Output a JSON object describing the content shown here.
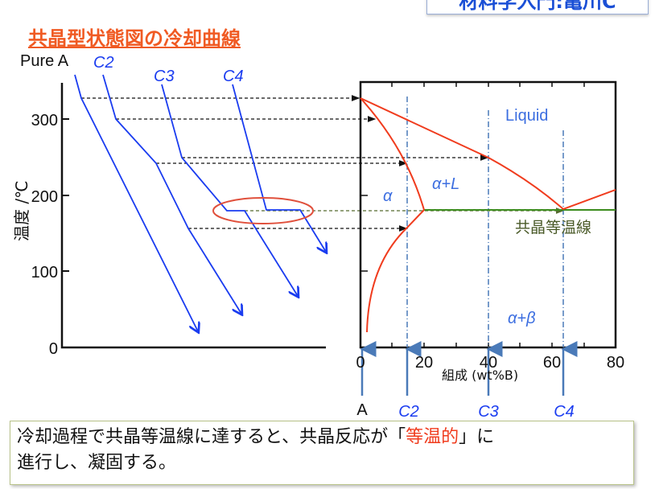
{
  "header": {
    "text": "材料学入門:亀川C"
  },
  "title": "共晶型状態図の冷却曲線",
  "cooling_curves": {
    "labels": [
      "Pure A",
      "C2",
      "C3",
      "C4"
    ],
    "y_axis": {
      "label": "温度 /℃",
      "ticks": [
        "0",
        "100",
        "200",
        "300"
      ]
    }
  },
  "phase_diagram": {
    "regions": {
      "liquid": "Liquid",
      "alpha": "α",
      "alpha_l": "α+L",
      "alpha_beta": "α+β"
    },
    "eutectic_label": "共晶等温線",
    "x_axis": {
      "label": "組成 (wt%B)",
      "ticks": [
        "0",
        "20",
        "40",
        "60",
        "80"
      ]
    },
    "compositions": [
      "A",
      "C2",
      "C3",
      "C4"
    ]
  },
  "colors": {
    "curve": "#1a3cf0",
    "phase_line": "#f03c1e",
    "eutectic": "#3c6e1e",
    "guide": "#4a7ab8",
    "title": "#f05a23"
  },
  "note": {
    "part1": "冷却過程で共晶等温線に達すると、共晶反応が「",
    "highlight": "等温的",
    "part2": "」に",
    "line2": "進行し、凝固する。"
  }
}
